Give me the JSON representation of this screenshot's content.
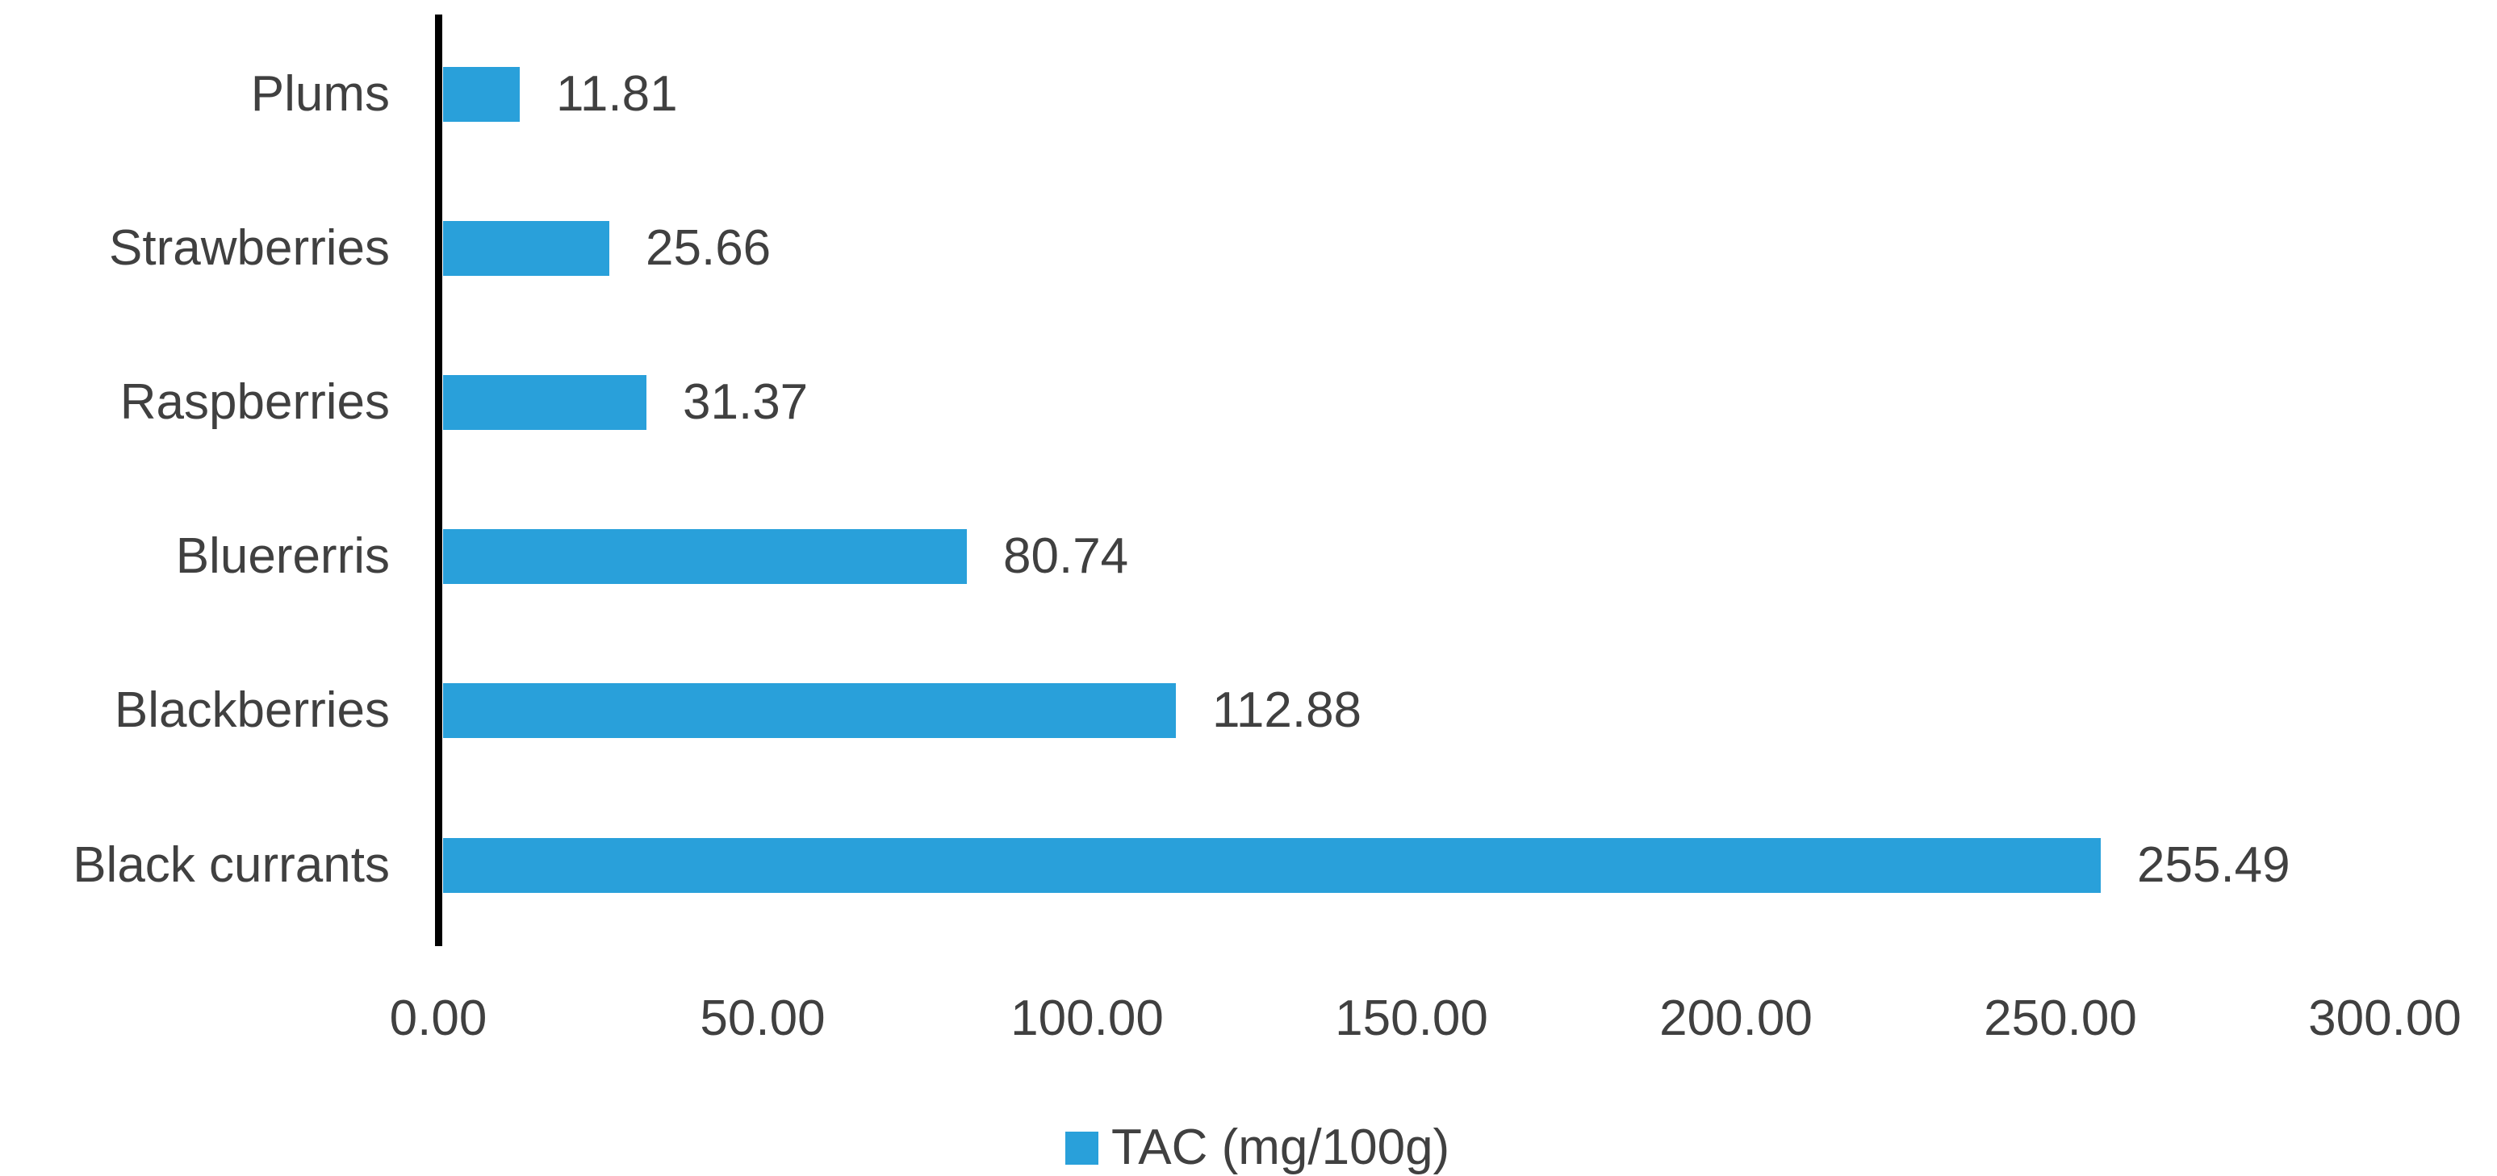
{
  "chart_data": {
    "type": "bar",
    "orientation": "horizontal",
    "title": "",
    "xlabel": "",
    "ylabel": "",
    "categories": [
      "Plums",
      "Strawberries",
      "Raspberries",
      "Bluererris",
      "Blackberries",
      "Black currants"
    ],
    "series": [
      {
        "name": "TAC (mg/100g)",
        "values": [
          11.81,
          25.66,
          31.37,
          80.74,
          112.88,
          255.49
        ]
      }
    ],
    "data_labels": [
      "11.81",
      "25.66",
      "31.37",
      "80.74",
      "112.88",
      "255.49"
    ],
    "x_ticks": [
      "0.00",
      "50.00",
      "100.00",
      "150.00",
      "200.00",
      "250.00",
      "300.00"
    ],
    "x_tick_values": [
      0,
      50,
      100,
      150,
      200,
      250,
      300
    ],
    "xlim": [
      0,
      300
    ],
    "grid": false,
    "legend": {
      "position": "bottom",
      "entries": [
        "TAC (mg/100g)"
      ]
    },
    "colors": {
      "bar": "#29A0DA",
      "text": "#404040",
      "axis": "#000000",
      "background": "#ffffff"
    }
  }
}
